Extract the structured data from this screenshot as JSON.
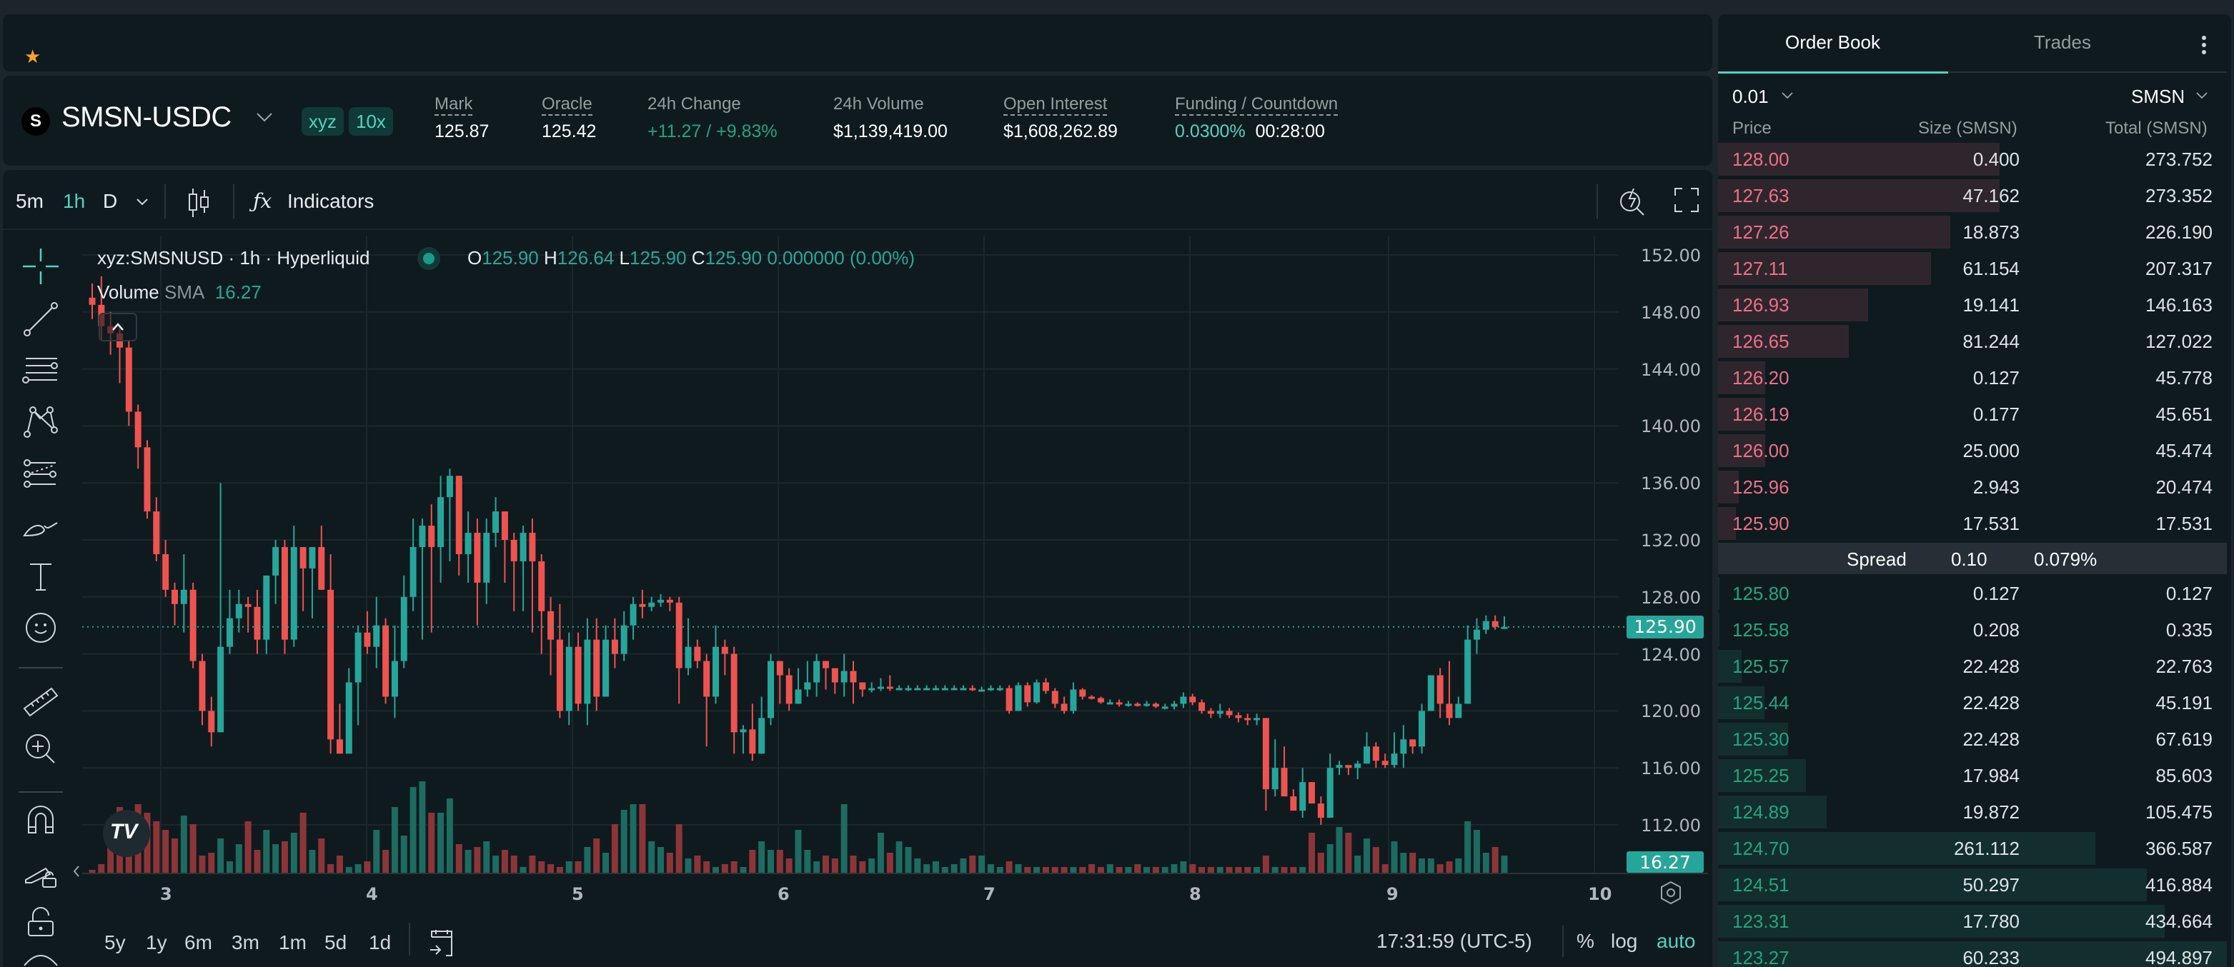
{
  "favorites": {
    "star_icon": "star-icon"
  },
  "ticker": {
    "logo_letter": "S",
    "pair": "SMSN-USDC",
    "badges": [
      "xyz",
      "10x"
    ],
    "stats": [
      {
        "label": "Mark",
        "value": "125.87"
      },
      {
        "label": "Oracle",
        "value": "125.42"
      },
      {
        "label": "24h Change",
        "value": "+11.27 / +9.83%"
      },
      {
        "label": "24h Volume",
        "value": "$1,139,419.00"
      },
      {
        "label": "Open Interest",
        "value": "$1,608,262.89"
      },
      {
        "label": "Funding / Countdown",
        "value_funding": "0.0300%",
        "value_countdown": "00:28:00"
      }
    ]
  },
  "chart_toolbar": {
    "intervals": [
      "5m",
      "1h",
      "D"
    ],
    "active_interval": "1h",
    "indicators_label": "Indicators"
  },
  "legend": {
    "symbol": "xyz:SMSNUSD · 1h · Hyperliquid",
    "o_label": "O",
    "o": "125.90",
    "h_label": "H",
    "h": "126.64",
    "l_label": "L",
    "l": "125.90",
    "c_label": "C",
    "c": "125.90",
    "change": "0.000000 (0.00%)",
    "volume_label": "Volume",
    "sma_label": "SMA",
    "sma_value": "16.27"
  },
  "price_axis": [
    "152.00",
    "148.00",
    "144.00",
    "140.00",
    "136.00",
    "132.00",
    "128.00",
    "124.00",
    "120.00",
    "116.00",
    "112.00"
  ],
  "current_price_tag": "125.90",
  "volume_tag": "16.27",
  "time_axis": [
    "3",
    "4",
    "5",
    "6",
    "7",
    "8",
    "9",
    "10"
  ],
  "range_buttons": [
    "5y",
    "1y",
    "6m",
    "3m",
    "1m",
    "5d",
    "1d"
  ],
  "bottom_bar": {
    "clock": "17:31:59 (UTC-5)",
    "percent": "%",
    "log": "log",
    "auto": "auto"
  },
  "colors": {
    "up": "#26a69a",
    "down": "#ef5350",
    "accent": "#50d2c1",
    "bg": "#0f1a1f"
  },
  "chart_data": {
    "type": "candlestick",
    "title": "xyz:SMSNUSD · 1h · Hyperliquid",
    "ylim": [
      110.5,
      153
    ],
    "y_ticks": [
      112,
      116,
      120,
      124,
      128,
      132,
      136,
      140,
      144,
      148,
      152
    ],
    "x_ticks": [
      "3",
      "4",
      "5",
      "6",
      "7",
      "8",
      "9",
      "10"
    ],
    "candles": [
      [
        149.0,
        148.5,
        150.0,
        147.5
      ],
      [
        148.5,
        147.0,
        150.5,
        146.0
      ],
      [
        147.0,
        146.5,
        148.0,
        145.0
      ],
      [
        146.5,
        145.5,
        147.0,
        143.0
      ],
      [
        145.5,
        141.0,
        146.0,
        140.0
      ],
      [
        141.0,
        138.5,
        141.5,
        137.0
      ],
      [
        138.5,
        134.0,
        139.0,
        133.5
      ],
      [
        134.0,
        131.0,
        135.0,
        130.5
      ],
      [
        131.0,
        128.5,
        132.0,
        128.0
      ],
      [
        128.5,
        127.5,
        129.0,
        126.0
      ],
      [
        127.5,
        128.5,
        131.0,
        125.5
      ],
      [
        128.5,
        123.5,
        129.0,
        123.0
      ],
      [
        123.5,
        120.0,
        124.0,
        119.0
      ],
      [
        120.0,
        118.5,
        121.0,
        117.5
      ],
      [
        118.5,
        124.5,
        136.0,
        118.5
      ],
      [
        124.5,
        126.5,
        128.5,
        124.0
      ],
      [
        126.5,
        127.5,
        128.5,
        125.5
      ],
      [
        127.5,
        127.3,
        128.0,
        125.5
      ],
      [
        127.3,
        125.0,
        128.5,
        124.0
      ],
      [
        125.0,
        129.5,
        129.5,
        124.0
      ],
      [
        129.5,
        131.5,
        132.0,
        127.5
      ],
      [
        131.5,
        125.0,
        132.0,
        124.0
      ],
      [
        125.0,
        131.5,
        133.0,
        124.5
      ],
      [
        131.5,
        130.0,
        131.5,
        127.0
      ],
      [
        130.0,
        131.5,
        131.5,
        126.5
      ],
      [
        131.5,
        128.5,
        133.0,
        128.5
      ],
      [
        128.5,
        118.0,
        131.0,
        117.0
      ],
      [
        118.0,
        117.0,
        120.5,
        117.0
      ],
      [
        117.0,
        122.0,
        123.0,
        119.5
      ],
      [
        122.0,
        125.5,
        126.0,
        119.0
      ],
      [
        125.5,
        124.5,
        127.0,
        124.0
      ],
      [
        124.5,
        126.0,
        128.0,
        123.0
      ],
      [
        126.0,
        121.0,
        126.5,
        120.5
      ],
      [
        121.0,
        123.5,
        126.0,
        119.5
      ],
      [
        123.5,
        128.0,
        129.5,
        123.0
      ],
      [
        128.0,
        131.5,
        133.5,
        127.0
      ],
      [
        131.5,
        133.0,
        133.5,
        125.0
      ],
      [
        133.0,
        131.5,
        134.5,
        125.5
      ],
      [
        131.5,
        135.0,
        136.5,
        129.0
      ],
      [
        135.0,
        136.5,
        137.0,
        130.5
      ],
      [
        136.5,
        131.0,
        136.5,
        129.5
      ],
      [
        131.0,
        132.5,
        134.0,
        129.0
      ],
      [
        132.5,
        129.0,
        133.5,
        126.0
      ],
      [
        129.0,
        132.5,
        133.5,
        127.5
      ],
      [
        132.5,
        134.0,
        135.0,
        131.5
      ],
      [
        134.0,
        132.0,
        134.0,
        129.0
      ],
      [
        132.0,
        130.5,
        132.5,
        127.0
      ],
      [
        130.5,
        132.5,
        133.0,
        127.0
      ],
      [
        132.5,
        130.5,
        133.5,
        125.5
      ],
      [
        130.5,
        127.0,
        131.0,
        124.0
      ],
      [
        127.0,
        125.0,
        128.0,
        122.5
      ],
      [
        125.0,
        120.0,
        127.5,
        119.5
      ],
      [
        120.0,
        124.5,
        125.5,
        119.0
      ],
      [
        124.5,
        120.5,
        125.5,
        120.0
      ],
      [
        120.5,
        125.0,
        126.5,
        119.0
      ],
      [
        125.0,
        121.0,
        126.5,
        120.0
      ],
      [
        121.0,
        125.0,
        126.0,
        121.0
      ],
      [
        125.0,
        124.0,
        126.5,
        123.0
      ],
      [
        124.0,
        126.0,
        127.0,
        123.5
      ],
      [
        126.0,
        127.5,
        128.0,
        125.0
      ],
      [
        127.5,
        127.3,
        128.5,
        126.5
      ],
      [
        127.3,
        127.6,
        128.0,
        127.0
      ],
      [
        127.6,
        127.8,
        128.2,
        127.3
      ],
      [
        127.8,
        127.6,
        128.0,
        127.0
      ],
      [
        127.6,
        123.0,
        128.0,
        120.5
      ],
      [
        123.0,
        124.5,
        126.5,
        122.5
      ],
      [
        124.5,
        123.5,
        125.0,
        123.0
      ],
      [
        123.5,
        121.0,
        124.0,
        117.5
      ],
      [
        121.0,
        124.5,
        126.0,
        120.5
      ],
      [
        124.5,
        124.0,
        125.0,
        122.5
      ],
      [
        124.0,
        118.5,
        124.5,
        117.0
      ],
      [
        118.5,
        118.7,
        119.0,
        117.0
      ],
      [
        118.7,
        117.0,
        120.5,
        116.5
      ],
      [
        117.0,
        119.5,
        121.0,
        117.0
      ],
      [
        119.5,
        123.5,
        124.0,
        119.0
      ],
      [
        123.5,
        122.5,
        123.5,
        120.5
      ],
      [
        122.5,
        120.5,
        123.0,
        120.0
      ],
      [
        120.5,
        121.5,
        123.0,
        120.5
      ],
      [
        121.5,
        122.0,
        123.5,
        121.0
      ],
      [
        122.0,
        123.5,
        124.0,
        121.0
      ],
      [
        123.5,
        123.0,
        123.5,
        121.5
      ],
      [
        123.0,
        122.0,
        122.8,
        121.2
      ],
      [
        122.0,
        122.8,
        124.0,
        121.0
      ],
      [
        122.8,
        122.0,
        123.5,
        120.5
      ],
      [
        122.0,
        121.5,
        122.0,
        121.0
      ],
      [
        121.5,
        121.6,
        122.0,
        121.3
      ],
      [
        121.6,
        121.7,
        122.3,
        121.4
      ],
      [
        121.7,
        121.6,
        122.5,
        121.4
      ],
      [
        121.6,
        121.6,
        121.8,
        121.5
      ],
      [
        121.6,
        121.6,
        121.8,
        121.4
      ],
      [
        121.6,
        121.6,
        121.8,
        121.5
      ],
      [
        121.6,
        121.6,
        121.8,
        121.5
      ],
      [
        121.6,
        121.6,
        121.8,
        121.5
      ],
      [
        121.6,
        121.6,
        121.8,
        121.5
      ],
      [
        121.6,
        121.6,
        121.8,
        121.5
      ],
      [
        121.6,
        121.6,
        121.8,
        121.5
      ],
      [
        121.6,
        121.5,
        121.8,
        121.4
      ],
      [
        121.5,
        121.5,
        121.7,
        121.4
      ],
      [
        121.5,
        121.6,
        121.8,
        121.4
      ],
      [
        121.6,
        121.6,
        121.8,
        121.4
      ],
      [
        121.6,
        120.0,
        121.8,
        119.8
      ],
      [
        120.0,
        121.8,
        122.0,
        120.0
      ],
      [
        121.8,
        120.6,
        122.0,
        120.3
      ],
      [
        120.6,
        122.0,
        122.2,
        120.5
      ],
      [
        122.0,
        121.4,
        122.3,
        121.2
      ],
      [
        121.4,
        120.5,
        121.6,
        120.2
      ],
      [
        120.5,
        120.0,
        121.0,
        119.8
      ],
      [
        120.0,
        121.5,
        122.0,
        119.8
      ],
      [
        121.5,
        121.0,
        121.6,
        120.8
      ],
      [
        121.0,
        120.9,
        121.1,
        120.8
      ],
      [
        120.9,
        120.6,
        121.0,
        120.5
      ],
      [
        120.6,
        120.6,
        120.8,
        120.5
      ],
      [
        120.6,
        120.5,
        120.8,
        120.3
      ],
      [
        120.5,
        120.5,
        120.7,
        120.3
      ],
      [
        120.5,
        120.4,
        120.6,
        120.3
      ],
      [
        120.4,
        120.5,
        120.7,
        120.3
      ],
      [
        120.5,
        120.3,
        120.6,
        120.2
      ],
      [
        120.3,
        120.3,
        120.5,
        120.1
      ],
      [
        120.3,
        120.5,
        120.7,
        120.1
      ],
      [
        120.5,
        121.0,
        121.3,
        120.2
      ],
      [
        121.0,
        120.6,
        121.2,
        120.4
      ],
      [
        120.6,
        120.0,
        120.8,
        119.8
      ],
      [
        120.0,
        119.8,
        120.2,
        119.5
      ],
      [
        119.8,
        120.0,
        120.5,
        119.5
      ],
      [
        120.0,
        119.7,
        120.2,
        119.5
      ],
      [
        119.7,
        119.5,
        119.9,
        119.2
      ],
      [
        119.5,
        119.4,
        119.8,
        119.0
      ],
      [
        119.4,
        119.5,
        119.8,
        119.0
      ],
      [
        119.5,
        114.5,
        119.5,
        113.0
      ],
      [
        114.5,
        116.0,
        118.0,
        114.0
      ],
      [
        116.0,
        114.0,
        117.5,
        114.0
      ],
      [
        114.0,
        113.0,
        114.5,
        113.0
      ],
      [
        113.0,
        115.0,
        116.0,
        112.5
      ],
      [
        115.0,
        113.5,
        115.0,
        113.5
      ],
      [
        113.5,
        112.5,
        114.0,
        112.0
      ],
      [
        112.5,
        116.0,
        117.0,
        112.5
      ],
      [
        116.0,
        116.2,
        116.5,
        115.5
      ],
      [
        116.2,
        116.0,
        116.2,
        115.5
      ],
      [
        116.0,
        116.3,
        116.5,
        115.2
      ],
      [
        116.3,
        117.5,
        118.5,
        116.3
      ],
      [
        117.5,
        116.5,
        117.8,
        116.0
      ],
      [
        116.5,
        116.2,
        117.0,
        116.0
      ],
      [
        116.2,
        117.0,
        118.5,
        116.0
      ],
      [
        117.0,
        118.0,
        119.0,
        116.0
      ],
      [
        118.0,
        117.5,
        118.0,
        117.0
      ],
      [
        117.5,
        120.0,
        120.5,
        117.0
      ],
      [
        120.0,
        122.5,
        122.5,
        120.0
      ],
      [
        122.5,
        120.5,
        123.0,
        119.5
      ],
      [
        120.5,
        119.5,
        123.5,
        119.0
      ],
      [
        119.5,
        120.5,
        121.0,
        119.8
      ],
      [
        120.5,
        125.0,
        126.0,
        120.5
      ],
      [
        125.0,
        125.7,
        126.5,
        124.0
      ],
      [
        125.7,
        126.3,
        126.7,
        125.4
      ],
      [
        126.3,
        125.9,
        126.7,
        125.7
      ],
      [
        125.9,
        125.9,
        126.64,
        125.9
      ]
    ],
    "volumes": [
      2,
      6,
      36,
      46,
      42,
      48,
      42,
      36,
      30,
      24,
      40,
      34,
      12,
      14,
      24,
      8,
      20,
      36,
      16,
      30,
      20,
      22,
      28,
      42,
      16,
      24,
      6,
      12,
      4,
      6,
      8,
      30,
      16,
      46,
      26,
      60,
      64,
      42,
      42,
      52,
      20,
      16,
      18,
      22,
      12,
      16,
      12,
      4,
      12,
      8,
      6,
      4,
      8,
      8,
      18,
      24,
      14,
      34,
      44,
      48,
      48,
      22,
      18,
      14,
      34,
      10,
      12,
      8,
      4,
      6,
      8,
      4,
      16,
      22,
      16,
      16,
      10,
      30,
      16,
      8,
      12,
      10,
      48,
      12,
      8,
      10,
      28,
      14,
      22,
      18,
      10,
      6,
      8,
      4,
      6,
      10,
      12,
      12,
      6,
      4,
      8,
      6,
      4,
      4,
      4,
      4,
      4,
      4,
      4,
      6,
      4,
      6,
      4,
      4,
      6,
      4,
      4,
      4,
      6,
      8,
      6,
      4,
      4,
      4,
      4,
      4,
      4,
      4,
      12,
      4,
      4,
      4,
      4,
      28,
      14,
      20,
      32,
      28,
      12,
      24,
      18,
      6,
      22,
      14,
      14,
      10,
      10,
      6,
      8,
      10,
      36,
      30,
      14,
      18,
      12,
      24,
      12,
      4,
      2
    ]
  },
  "order_book": {
    "tabs": [
      "Order Book",
      "Trades"
    ],
    "active_tab": "Order Book",
    "tick_size": "0.01",
    "unit": "SMSN",
    "headers": {
      "price": "Price",
      "size": "Size (SMSN)",
      "total": "Total (SMSN)"
    },
    "asks": [
      {
        "price": "128.00",
        "size": "0.400",
        "total": "273.752",
        "depth": 0.553
      },
      {
        "price": "127.63",
        "size": "47.162",
        "total": "273.352",
        "depth": 0.553
      },
      {
        "price": "127.26",
        "size": "18.873",
        "total": "226.190",
        "depth": 0.457
      },
      {
        "price": "127.11",
        "size": "61.154",
        "total": "207.317",
        "depth": 0.419
      },
      {
        "price": "126.93",
        "size": "19.141",
        "total": "146.163",
        "depth": 0.295
      },
      {
        "price": "126.65",
        "size": "81.244",
        "total": "127.022",
        "depth": 0.257
      },
      {
        "price": "126.20",
        "size": "0.127",
        "total": "45.778",
        "depth": 0.092
      },
      {
        "price": "126.19",
        "size": "0.177",
        "total": "45.651",
        "depth": 0.092
      },
      {
        "price": "126.00",
        "size": "25.000",
        "total": "45.474",
        "depth": 0.092
      },
      {
        "price": "125.96",
        "size": "2.943",
        "total": "20.474",
        "depth": 0.041
      },
      {
        "price": "125.90",
        "size": "17.531",
        "total": "17.531",
        "depth": 0.035
      }
    ],
    "spread": {
      "label": "Spread",
      "value": "0.10",
      "percent": "0.079%"
    },
    "bids": [
      {
        "price": "125.80",
        "size": "0.127",
        "total": "0.127",
        "depth": 0.003
      },
      {
        "price": "125.58",
        "size": "0.208",
        "total": "0.335",
        "depth": 0.003
      },
      {
        "price": "125.57",
        "size": "22.428",
        "total": "22.763",
        "depth": 0.046
      },
      {
        "price": "125.44",
        "size": "22.428",
        "total": "45.191",
        "depth": 0.091
      },
      {
        "price": "125.30",
        "size": "22.428",
        "total": "67.619",
        "depth": 0.137
      },
      {
        "price": "125.25",
        "size": "17.984",
        "total": "85.603",
        "depth": 0.173
      },
      {
        "price": "124.89",
        "size": "19.872",
        "total": "105.475",
        "depth": 0.213
      },
      {
        "price": "124.70",
        "size": "261.112",
        "total": "366.587",
        "depth": 0.741
      },
      {
        "price": "124.51",
        "size": "50.297",
        "total": "416.884",
        "depth": 0.842
      },
      {
        "price": "123.31",
        "size": "17.780",
        "total": "434.664",
        "depth": 0.878
      },
      {
        "price": "123.27",
        "size": "60.233",
        "total": "494.897",
        "depth": 1.0
      }
    ]
  }
}
